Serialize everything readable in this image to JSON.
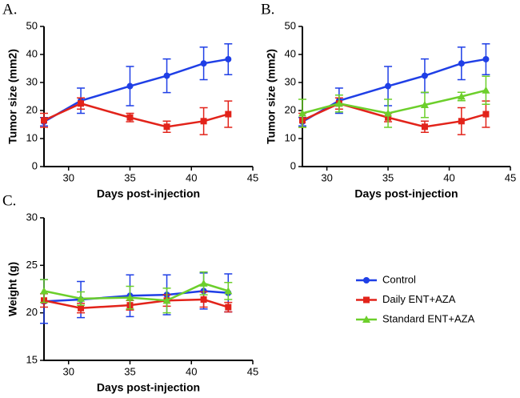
{
  "chart_data": [
    {
      "type": "line",
      "panel": "A.",
      "xlabel": "Days post-injection",
      "ylabel": "Tumor size (mm2)",
      "x": [
        28,
        31,
        35,
        38,
        41,
        43
      ],
      "xlim": [
        28,
        45
      ],
      "xticks": [
        30,
        35,
        40,
        45
      ],
      "ylim": [
        0,
        50
      ],
      "yticks": [
        0,
        10,
        20,
        30,
        40,
        50
      ],
      "series": [
        {
          "name": "Control",
          "color": "#1f3fe6",
          "marker": "circle",
          "values": [
            16,
            23.5,
            28.7,
            32.4,
            36.8,
            38.3
          ],
          "errors": [
            1.5,
            4.5,
            7,
            6,
            5.8,
            5.5
          ]
        },
        {
          "name": "Daily ENT+AZA",
          "color": "#e2231a",
          "marker": "square",
          "values": [
            16.5,
            22.5,
            17.5,
            14.2,
            16.2,
            18.7
          ],
          "errors": [
            2.5,
            2,
            1.5,
            2,
            4.8,
            4.7
          ]
        }
      ]
    },
    {
      "type": "line",
      "panel": "B.",
      "xlabel": "Days post-injection",
      "ylabel": "Tumor size (mm2)",
      "x": [
        28,
        31,
        35,
        38,
        41,
        43
      ],
      "xlim": [
        28,
        45
      ],
      "xticks": [
        30,
        35,
        40,
        45
      ],
      "ylim": [
        0,
        50
      ],
      "yticks": [
        0,
        10,
        20,
        30,
        40,
        50
      ],
      "series": [
        {
          "name": "Control",
          "color": "#1f3fe6",
          "marker": "circle",
          "values": [
            16,
            23.5,
            28.7,
            32.4,
            36.8,
            38.3
          ],
          "errors": [
            1.5,
            4.5,
            7,
            6,
            5.8,
            5.5
          ]
        },
        {
          "name": "Daily ENT+AZA",
          "color": "#e2231a",
          "marker": "square",
          "values": [
            16.5,
            22.5,
            17.5,
            14.2,
            16.2,
            18.7
          ],
          "errors": [
            2.5,
            2,
            1.5,
            2,
            4.8,
            4.7
          ]
        },
        {
          "name": "Standard ENT+AZA",
          "color": "#6ccf2b",
          "marker": "triangle",
          "values": [
            19,
            22.5,
            19,
            22,
            25,
            27.2
          ],
          "errors": [
            5,
            3,
            5,
            4.5,
            1.5,
            5
          ]
        }
      ]
    },
    {
      "type": "line",
      "panel": "C.",
      "xlabel": "Days post-injection",
      "ylabel": "Weight (g)",
      "x": [
        28,
        31,
        35,
        38,
        41,
        43
      ],
      "xlim": [
        28,
        45
      ],
      "xticks": [
        30,
        35,
        40,
        45
      ],
      "ylim": [
        15,
        30
      ],
      "yticks": [
        15,
        20,
        25,
        30
      ],
      "legend": "right",
      "series": [
        {
          "name": "Control",
          "color": "#1f3fe6",
          "marker": "circle",
          "values": [
            21.2,
            21.4,
            21.8,
            21.9,
            22.3,
            22.1
          ],
          "errors": [
            2.3,
            1.9,
            2.2,
            2.1,
            1.9,
            2
          ]
        },
        {
          "name": "Daily ENT+AZA",
          "color": "#e2231a",
          "marker": "square",
          "values": [
            21.3,
            20.5,
            20.8,
            21.3,
            21.4,
            20.6
          ],
          "errors": [
            0.7,
            0.5,
            0.5,
            0.6,
            0.8,
            0.5
          ]
        },
        {
          "name": "Standard ENT+AZA",
          "color": "#6ccf2b",
          "marker": "triangle",
          "values": [
            22.3,
            21.5,
            21.6,
            21.3,
            23.1,
            22.3
          ],
          "errors": [
            1.2,
            0.7,
            1.2,
            1.3,
            1.2,
            0.9
          ]
        }
      ]
    }
  ]
}
